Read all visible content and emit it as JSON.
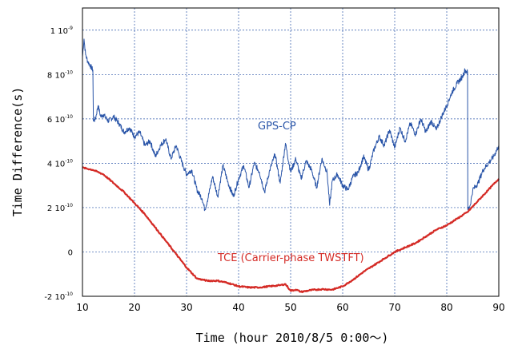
{
  "chart_data": {
    "type": "line",
    "xlabel": "Time (hour  2010/8/5 0:00～)",
    "ylabel": "Time Difference(s)",
    "xlim": [
      10,
      90
    ],
    "ylim": [
      -2e-10,
      1.1e-09
    ],
    "grid": true,
    "x_ticks": [
      "10",
      "20",
      "30",
      "40",
      "50",
      "60",
      "70",
      "80",
      "90"
    ],
    "y_ticks": [
      {
        "value": 1e-09,
        "mant": "1 10",
        "exp": "-9"
      },
      {
        "value": 8e-10,
        "mant": "8 10",
        "exp": "-10"
      },
      {
        "value": 6e-10,
        "mant": "6 10",
        "exp": "-10"
      },
      {
        "value": 4e-10,
        "mant": "4 10",
        "exp": "-10"
      },
      {
        "value": 2e-10,
        "mant": "2 10",
        "exp": "-10"
      },
      {
        "value": 0,
        "mant": "0",
        "exp": ""
      },
      {
        "value": -2e-10,
        "mant": "-2 10",
        "exp": "-10"
      }
    ],
    "series": [
      {
        "name": "GPS-CP",
        "color": "#2a55a8",
        "x": [
          10,
          10.3,
          10.6,
          11,
          11.5,
          12,
          12.1,
          12.5,
          13,
          13.5,
          14,
          15,
          16,
          17,
          18,
          19,
          20,
          21,
          22,
          23,
          24,
          25,
          26,
          27,
          28,
          29,
          30,
          31,
          32,
          33,
          33.5,
          34,
          35,
          36,
          37,
          38,
          39,
          40,
          41,
          42,
          43,
          44,
          45,
          46,
          47,
          48,
          49,
          50,
          51,
          52,
          53,
          54,
          55,
          56,
          57,
          57.5,
          58,
          59,
          60,
          61,
          62,
          63,
          64,
          65,
          66,
          67,
          68,
          69,
          70,
          71,
          72,
          73,
          74,
          75,
          76,
          77,
          78,
          79,
          80,
          81,
          82,
          83,
          83.5,
          84,
          84.05,
          84.5,
          85,
          86,
          87,
          88,
          89,
          90
        ],
        "y": [
          8.8e-10,
          9.6e-10,
          8.9e-10,
          8.6e-10,
          8.4e-10,
          8.2e-10,
          5.9e-10,
          6e-10,
          6.6e-10,
          6.1e-10,
          6.2e-10,
          5.9e-10,
          6.1e-10,
          5.8e-10,
          5.4e-10,
          5.6e-10,
          5.2e-10,
          5.4e-10,
          4.8e-10,
          5e-10,
          4.3e-10,
          4.8e-10,
          5.1e-10,
          4.2e-10,
          4.8e-10,
          4.1e-10,
          3.5e-10,
          3.7e-10,
          2.8e-10,
          2.4e-10,
          1.9e-10,
          2.3e-10,
          3.4e-10,
          2.5e-10,
          3.9e-10,
          3.1e-10,
          2.5e-10,
          3.3e-10,
          3.9e-10,
          2.9e-10,
          4e-10,
          3.6e-10,
          2.7e-10,
          3.7e-10,
          4.4e-10,
          3.1e-10,
          4.9e-10,
          3.6e-10,
          4.2e-10,
          3.3e-10,
          4.1e-10,
          3.7e-10,
          2.9e-10,
          4.2e-10,
          3.6e-10,
          2.1e-10,
          3.2e-10,
          3.5e-10,
          3e-10,
          2.8e-10,
          3.4e-10,
          3.6e-10,
          4.3e-10,
          3.7e-10,
          4.6e-10,
          5.2e-10,
          4.8e-10,
          5.5e-10,
          4.7e-10,
          5.6e-10,
          5e-10,
          5.8e-10,
          5.3e-10,
          6e-10,
          5.4e-10,
          5.9e-10,
          5.5e-10,
          6.1e-10,
          6.6e-10,
          7.2e-10,
          7.6e-10,
          7.9e-10,
          8.2e-10,
          8.1e-10,
          1.9e-10,
          2.1e-10,
          2.8e-10,
          3.1e-10,
          3.7e-10,
          4e-10,
          4.3e-10,
          4.8e-10
        ]
      },
      {
        "name": "TCE (Carrier-phase TWSTFT)",
        "color": "#d42a25",
        "x": [
          10,
          12,
          14,
          16,
          18,
          20,
          22,
          24,
          26,
          28,
          30,
          32,
          34,
          36,
          38,
          40,
          42,
          44,
          46,
          48,
          49,
          50,
          51,
          52,
          54,
          56,
          58,
          60,
          62,
          64,
          66,
          68,
          70,
          72,
          74,
          76,
          78,
          80,
          82,
          84,
          86,
          88,
          90
        ],
        "y": [
          3.8e-10,
          3.7e-10,
          3.5e-10,
          3.1e-10,
          2.7e-10,
          2.2e-10,
          1.7e-10,
          1.1e-10,
          5e-11,
          -1e-11,
          -7e-11,
          -1.2e-10,
          -1.3e-10,
          -1.3e-10,
          -1.4e-10,
          -1.55e-10,
          -1.6e-10,
          -1.6e-10,
          -1.55e-10,
          -1.5e-10,
          -1.45e-10,
          -1.75e-10,
          -1.7e-10,
          -1.8e-10,
          -1.72e-10,
          -1.68e-10,
          -1.7e-10,
          -1.55e-10,
          -1.25e-10,
          -9e-11,
          -6e-11,
          -3e-11,
          0,
          2e-11,
          4e-11,
          7e-11,
          1e-10,
          1.2e-10,
          1.5e-10,
          1.8e-10,
          2.3e-10,
          2.8e-10,
          3.3e-10
        ]
      }
    ]
  }
}
